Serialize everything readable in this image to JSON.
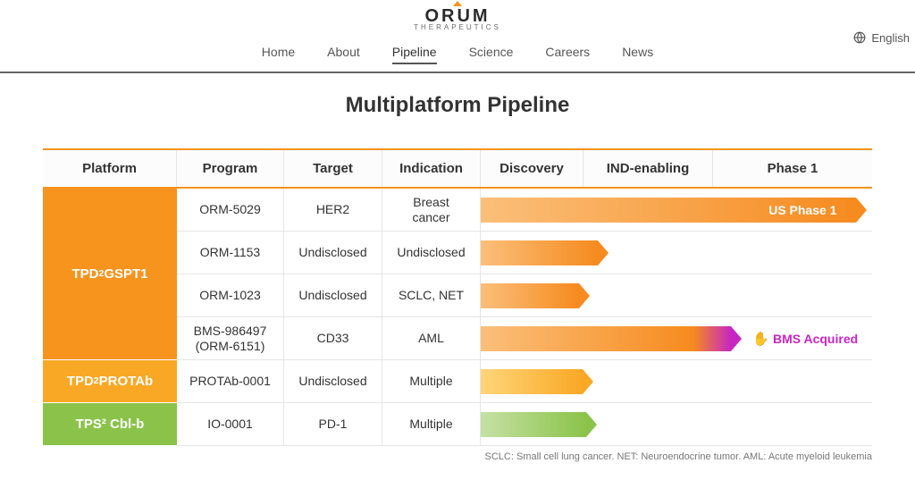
{
  "logo": {
    "brand": "ORUM",
    "sub": "THERAPEUTICS",
    "hat_color": "#f7941d"
  },
  "lang": "English",
  "nav": {
    "items": [
      {
        "label": "Home",
        "active": false
      },
      {
        "label": "About",
        "active": false
      },
      {
        "label": "Pipeline",
        "active": true
      },
      {
        "label": "Science",
        "active": false
      },
      {
        "label": "Careers",
        "active": false
      },
      {
        "label": "News",
        "active": false
      }
    ]
  },
  "title": "Multiplatform Pipeline",
  "columns": {
    "platform": "Platform",
    "program": "Program",
    "target": "Target",
    "indication": "Indication",
    "discovery": "Discovery",
    "ind": "IND-enabling",
    "phase1": "Phase 1"
  },
  "stage_widths": {
    "discovery": 115,
    "ind": 145,
    "phase1": 178
  },
  "platforms": [
    {
      "label_html": "TPD<sup>2</sup> GSPT1",
      "rows": 4,
      "bg": "#f7941d"
    },
    {
      "label_html": "TPD<sup>2</sup> PROTAb",
      "rows": 1,
      "bg": "#f9a825"
    },
    {
      "label_html": "TPS² Cbl-b",
      "rows": 1,
      "bg": "#8bc34a"
    }
  ],
  "rows": [
    {
      "program": "ORM-5029",
      "target": "HER2",
      "indication": "Breast\ncancer",
      "bar": {
        "width_pct": 96,
        "grad": [
          "#fbbf7a",
          "#f68b1f"
        ],
        "arrow": "#f68b1f",
        "label": "US Phase 1"
      }
    },
    {
      "program": "ORM-1153",
      "target": "Undisclosed",
      "indication": "Undisclosed",
      "bar": {
        "width_pct": 30,
        "grad": [
          "#fbbf7a",
          "#f68b1f"
        ],
        "arrow": "#f68b1f",
        "label": ""
      }
    },
    {
      "program": "ORM-1023",
      "target": "Undisclosed",
      "indication": "SCLC, NET",
      "bar": {
        "width_pct": 25,
        "grad": [
          "#fbbf7a",
          "#f68b1f"
        ],
        "arrow": "#f68b1f",
        "label": ""
      }
    },
    {
      "program": "BMS-986497\n(ORM-6151)",
      "target": "CD33",
      "indication": "AML",
      "bar": {
        "width_pct": 64,
        "grad": [
          "#fbbf7a",
          "#f68b1f",
          "#c726c2"
        ],
        "arrow": "#c726c2",
        "label": ""
      },
      "annotation": {
        "text": "BMS Acquired",
        "color": "#c726c2",
        "icon": "✋"
      }
    },
    {
      "program": "PROTAb-0001",
      "target": "Undisclosed",
      "indication": "Multiple",
      "bar": {
        "width_pct": 26,
        "grad": [
          "#ffd57a",
          "#f9a825"
        ],
        "arrow": "#f9a825",
        "label": ""
      }
    },
    {
      "program": "IO-0001",
      "target": "PD-1",
      "indication": "Multiple",
      "bar": {
        "width_pct": 27,
        "grad": [
          "#c5e1a5",
          "#8bc34a"
        ],
        "arrow": "#8bc34a",
        "label": ""
      }
    }
  ],
  "footnote": "SCLC: Small cell lung cancer. NET: Neuroendocrine tumor. AML: Acute myeloid leukemia"
}
